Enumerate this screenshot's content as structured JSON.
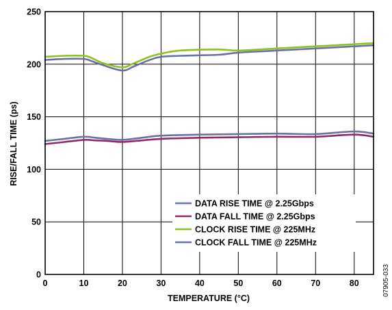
{
  "chart_data": {
    "type": "line",
    "xlabel": "TEMPERATURE (°C)",
    "ylabel": "RISE/FALL TIME (ps)",
    "xlim": [
      0,
      85
    ],
    "ylim": [
      0,
      250
    ],
    "xticks": [
      0,
      10,
      20,
      30,
      40,
      50,
      60,
      70,
      80
    ],
    "yticks": [
      0,
      50,
      100,
      150,
      200,
      250
    ],
    "grid": true,
    "legend_position": "bottom-right",
    "figure_id": "07905-033",
    "series": [
      {
        "name": "DATA RISE TIME @ 2.25Gbps",
        "color": "#6a6fa6",
        "x": [
          0,
          5,
          10,
          13,
          16,
          20,
          25,
          30,
          40,
          50,
          60,
          70,
          80,
          85
        ],
        "y": [
          127,
          129,
          131,
          130,
          129,
          128,
          130,
          132,
          133,
          133.5,
          134,
          133.5,
          136,
          134
        ]
      },
      {
        "name": "DATA FALL TIME @ 2.25Gbps",
        "color": "#8e2a6a",
        "x": [
          0,
          5,
          10,
          13,
          16,
          20,
          25,
          30,
          40,
          50,
          60,
          70,
          80,
          85
        ],
        "y": [
          124,
          126,
          128,
          127.5,
          127,
          126,
          127.5,
          129,
          130,
          130.5,
          131,
          131,
          133,
          131
        ]
      },
      {
        "name": "CLOCK RISE TIME @ 225MHz",
        "color": "#8cc21f",
        "x": [
          0,
          5,
          10,
          12,
          15,
          20,
          23,
          27,
          30,
          35,
          45,
          50,
          60,
          70,
          80,
          85
        ],
        "y": [
          207,
          208,
          208,
          206,
          201,
          197,
          201,
          207,
          210,
          213,
          214,
          213,
          215,
          217,
          219,
          220
        ]
      },
      {
        "name": "CLOCK FALL TIME @ 225MHz",
        "color": "#6a6fa6",
        "x": [
          0,
          5,
          10,
          12,
          15,
          20,
          23,
          27,
          30,
          35,
          45,
          50,
          60,
          70,
          80,
          85
        ],
        "y": [
          204,
          205,
          205,
          203,
          199,
          194,
          198,
          204,
          207,
          208,
          209,
          211,
          213,
          215,
          217,
          218
        ]
      }
    ]
  }
}
